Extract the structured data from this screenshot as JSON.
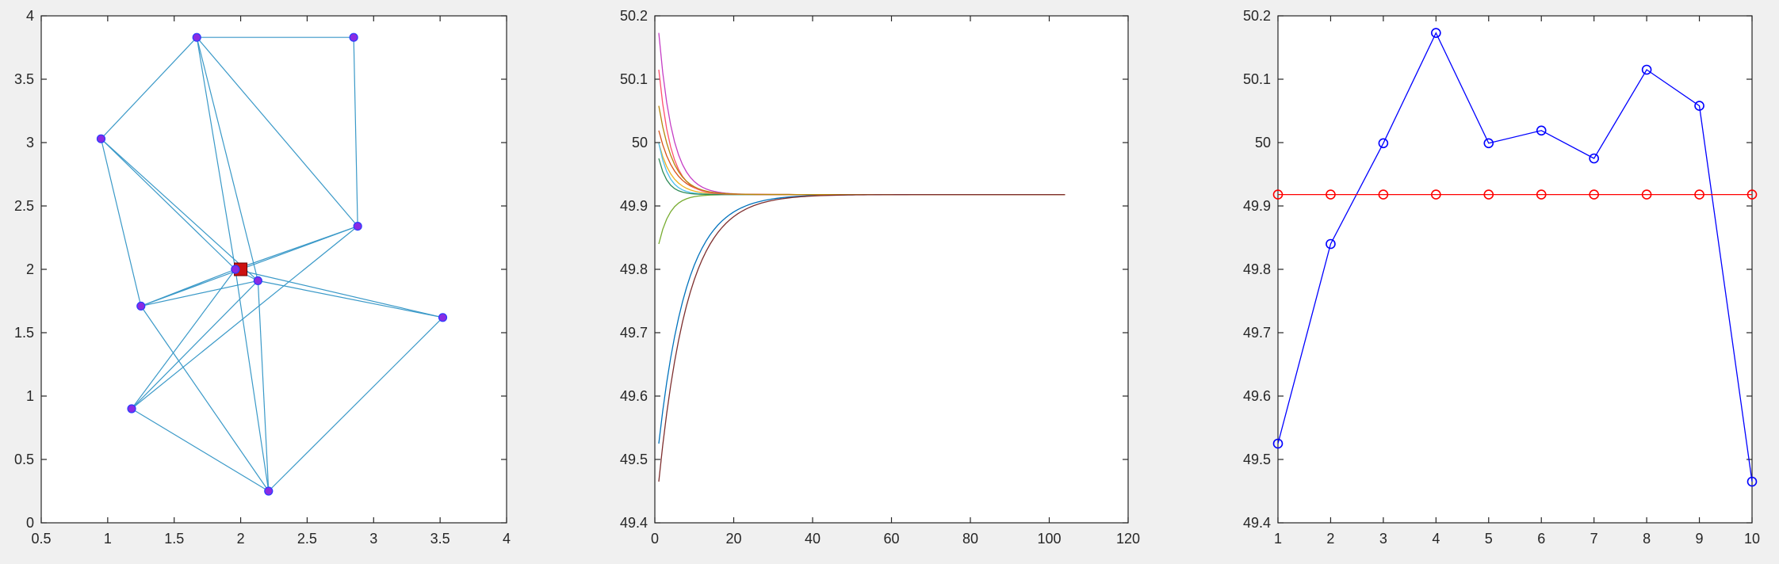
{
  "window": {
    "background": "#f0f0f0"
  },
  "chart_data": [
    {
      "type": "scatter",
      "title": "",
      "xlabel": "",
      "ylabel": "",
      "xlim": [
        0.5,
        4
      ],
      "ylim": [
        0,
        4
      ],
      "grid": false,
      "xticks": [
        0.5,
        1,
        1.5,
        2,
        2.5,
        3,
        3.5,
        4
      ],
      "yticks": [
        0,
        0.5,
        1,
        1.5,
        2,
        2.5,
        3,
        3.5,
        4
      ],
      "xtick_labels": [
        "0.5",
        "1",
        "1.5",
        "2",
        "2.5",
        "3",
        "3.5",
        "4"
      ],
      "ytick_labels": [
        "0",
        "0.5",
        "1",
        "1.5",
        "2",
        "2.5",
        "3",
        "3.5",
        "4"
      ],
      "edge_color": "#3a99c8",
      "node_color": "#8a2be2",
      "center_color": "#cc1111",
      "nodes": [
        {
          "x": 1.67,
          "y": 3.83
        },
        {
          "x": 2.85,
          "y": 3.83
        },
        {
          "x": 0.95,
          "y": 3.03
        },
        {
          "x": 2.88,
          "y": 2.34
        },
        {
          "x": 1.96,
          "y": 2.0
        },
        {
          "x": 2.13,
          "y": 1.91
        },
        {
          "x": 1.25,
          "y": 1.71
        },
        {
          "x": 3.52,
          "y": 1.62
        },
        {
          "x": 1.18,
          "y": 0.9
        },
        {
          "x": 2.21,
          "y": 0.25
        }
      ],
      "center": {
        "x": 2.0,
        "y": 2.0
      },
      "edges": [
        [
          0,
          1
        ],
        [
          0,
          2
        ],
        [
          0,
          3
        ],
        [
          0,
          4
        ],
        [
          0,
          5
        ],
        [
          1,
          3
        ],
        [
          2,
          4
        ],
        [
          2,
          5
        ],
        [
          2,
          6
        ],
        [
          3,
          4
        ],
        [
          3,
          6
        ],
        [
          3,
          8
        ],
        [
          4,
          7
        ],
        [
          5,
          7
        ],
        [
          4,
          6
        ],
        [
          6,
          5
        ],
        [
          6,
          9
        ],
        [
          8,
          9
        ],
        [
          8,
          4
        ],
        [
          8,
          5
        ],
        [
          7,
          9
        ],
        [
          4,
          9
        ],
        [
          5,
          9
        ],
        [
          4,
          5
        ]
      ]
    },
    {
      "type": "line",
      "title": "",
      "xlabel": "",
      "ylabel": "",
      "xlim": [
        0,
        120
      ],
      "ylim": [
        49.4,
        50.2
      ],
      "grid": false,
      "xticks": [
        0,
        20,
        40,
        60,
        80,
        100,
        120
      ],
      "yticks": [
        49.4,
        49.5,
        49.6,
        49.7,
        49.8,
        49.9,
        50,
        50.1,
        50.2
      ],
      "xtick_labels": [
        "0",
        "20",
        "40",
        "60",
        "80",
        "100",
        "120"
      ],
      "ytick_labels": [
        "49.4",
        "49.5",
        "49.6",
        "49.7",
        "49.8",
        "49.9",
        "50",
        "50.1",
        "50.2"
      ],
      "steps": 104,
      "consensus": 49.918,
      "series": [
        {
          "start": 49.525,
          "color": "#0072bd",
          "rate": 0.14
        },
        {
          "start": 49.84,
          "color": "#77ac30",
          "rate": 0.35
        },
        {
          "start": 49.999,
          "color": "#edb120",
          "rate": 0.3
        },
        {
          "start": 50.173,
          "color": "#c53ec5",
          "rate": 0.28
        },
        {
          "start": 49.999,
          "color": "#4dbeee",
          "rate": 0.4
        },
        {
          "start": 50.019,
          "color": "#d95319",
          "rate": 0.25
        },
        {
          "start": 49.975,
          "color": "#2e8b57",
          "rate": 0.45
        },
        {
          "start": 50.115,
          "color": "#ff4f6d",
          "rate": 0.32
        },
        {
          "start": 50.058,
          "color": "#b8860b",
          "rate": 0.27
        },
        {
          "start": 49.465,
          "color": "#7e2f2f",
          "rate": 0.135
        }
      ]
    },
    {
      "type": "line",
      "title": "",
      "xlabel": "",
      "ylabel": "",
      "xlim": [
        1,
        10
      ],
      "ylim": [
        49.4,
        50.2
      ],
      "grid": false,
      "xticks": [
        1,
        2,
        3,
        4,
        5,
        6,
        7,
        8,
        9,
        10
      ],
      "yticks": [
        49.4,
        49.5,
        49.6,
        49.7,
        49.8,
        49.9,
        50,
        50.1,
        50.2
      ],
      "xtick_labels": [
        "1",
        "2",
        "3",
        "4",
        "5",
        "6",
        "7",
        "8",
        "9",
        "10"
      ],
      "ytick_labels": [
        "49.4",
        "49.5",
        "49.6",
        "49.7",
        "49.8",
        "49.9",
        "50",
        "50.1",
        "50.2"
      ],
      "x": [
        1,
        2,
        3,
        4,
        5,
        6,
        7,
        8,
        9,
        10
      ],
      "series": [
        {
          "color": "#0000ff",
          "marker": "o",
          "values": [
            49.525,
            49.84,
            49.999,
            50.173,
            49.999,
            50.019,
            49.975,
            50.115,
            50.058,
            49.465
          ]
        },
        {
          "color": "#ff0000",
          "marker": "o",
          "values": [
            49.918,
            49.918,
            49.918,
            49.918,
            49.918,
            49.918,
            49.918,
            49.918,
            49.918,
            49.918
          ]
        }
      ]
    }
  ]
}
